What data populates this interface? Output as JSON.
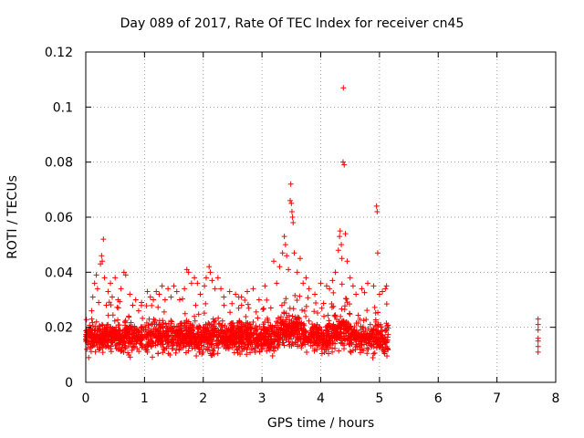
{
  "chart_data": {
    "type": "scatter",
    "title": "Day 089 of 2017, Rate Of TEC Index for receiver cn45",
    "xlabel": "GPS time / hours",
    "ylabel": "ROTI / TECUs",
    "xlim": [
      0,
      8
    ],
    "ylim": [
      0,
      0.12
    ],
    "xticks": [
      "0",
      "1",
      "2",
      "3",
      "4",
      "5",
      "6",
      "7",
      "8"
    ],
    "yticks": [
      "0",
      "0.02",
      "0.04",
      "0.06",
      "0.08",
      "0.1",
      "0.12"
    ],
    "grid": true,
    "marker": "+",
    "color": "#ff0000",
    "series": [
      {
        "name": "ROTI",
        "points": [
          [
            0.02,
            0.012
          ],
          [
            0.05,
            0.009
          ],
          [
            0.08,
            0.019
          ],
          [
            0.1,
            0.026
          ],
          [
            0.12,
            0.031
          ],
          [
            0.15,
            0.036
          ],
          [
            0.18,
            0.039
          ],
          [
            0.2,
            0.034
          ],
          [
            0.22,
            0.029
          ],
          [
            0.25,
            0.043
          ],
          [
            0.27,
            0.046
          ],
          [
            0.28,
            0.044
          ],
          [
            0.3,
            0.052
          ],
          [
            0.32,
            0.038
          ],
          [
            0.35,
            0.028
          ],
          [
            0.38,
            0.033
          ],
          [
            0.42,
            0.036
          ],
          [
            0.45,
            0.031
          ],
          [
            0.5,
            0.038
          ],
          [
            0.55,
            0.03
          ],
          [
            0.6,
            0.034
          ],
          [
            0.65,
            0.04
          ],
          [
            0.68,
            0.039
          ],
          [
            0.75,
            0.032
          ],
          [
            0.8,
            0.028
          ],
          [
            0.85,
            0.03
          ],
          [
            0.9,
            0.026
          ],
          [
            0.95,
            0.029
          ],
          [
            1.05,
            0.033
          ],
          [
            1.1,
            0.031
          ],
          [
            1.15,
            0.03
          ],
          [
            1.2,
            0.033
          ],
          [
            1.25,
            0.032
          ],
          [
            1.3,
            0.035
          ],
          [
            1.35,
            0.03
          ],
          [
            1.4,
            0.034
          ],
          [
            1.45,
            0.031
          ],
          [
            1.5,
            0.035
          ],
          [
            1.55,
            0.033
          ],
          [
            1.6,
            0.03
          ],
          [
            1.68,
            0.034
          ],
          [
            1.72,
            0.041
          ],
          [
            1.75,
            0.04
          ],
          [
            1.8,
            0.036
          ],
          [
            1.85,
            0.038
          ],
          [
            1.9,
            0.036
          ],
          [
            1.95,
            0.032
          ],
          [
            2.02,
            0.035
          ],
          [
            2.05,
            0.038
          ],
          [
            2.1,
            0.042
          ],
          [
            2.12,
            0.04
          ],
          [
            2.15,
            0.037
          ],
          [
            2.2,
            0.034
          ],
          [
            2.25,
            0.038
          ],
          [
            2.3,
            0.034
          ],
          [
            2.35,
            0.031
          ],
          [
            2.45,
            0.033
          ],
          [
            2.55,
            0.032
          ],
          [
            2.65,
            0.031
          ],
          [
            2.75,
            0.033
          ],
          [
            2.85,
            0.034
          ],
          [
            2.95,
            0.03
          ],
          [
            3.05,
            0.035
          ],
          [
            3.15,
            0.027
          ],
          [
            3.2,
            0.044
          ],
          [
            3.25,
            0.036
          ],
          [
            3.3,
            0.042
          ],
          [
            3.35,
            0.047
          ],
          [
            3.38,
            0.053
          ],
          [
            3.4,
            0.05
          ],
          [
            3.42,
            0.046
          ],
          [
            3.45,
            0.041
          ],
          [
            3.48,
            0.066
          ],
          [
            3.49,
            0.072
          ],
          [
            3.5,
            0.065
          ],
          [
            3.51,
            0.062
          ],
          [
            3.52,
            0.06
          ],
          [
            3.53,
            0.058
          ],
          [
            3.55,
            0.047
          ],
          [
            3.6,
            0.04
          ],
          [
            3.65,
            0.045
          ],
          [
            3.7,
            0.036
          ],
          [
            3.75,
            0.038
          ],
          [
            3.8,
            0.034
          ],
          [
            3.9,
            0.032
          ],
          [
            4.0,
            0.036
          ],
          [
            4.1,
            0.035
          ],
          [
            4.15,
            0.034
          ],
          [
            4.2,
            0.037
          ],
          [
            4.25,
            0.04
          ],
          [
            4.3,
            0.048
          ],
          [
            4.32,
            0.053
          ],
          [
            4.33,
            0.055
          ],
          [
            4.35,
            0.05
          ],
          [
            4.36,
            0.045
          ],
          [
            4.38,
            0.08
          ],
          [
            4.385,
            0.107
          ],
          [
            4.4,
            0.079
          ],
          [
            4.42,
            0.054
          ],
          [
            4.45,
            0.044
          ],
          [
            4.5,
            0.038
          ],
          [
            4.55,
            0.035
          ],
          [
            4.6,
            0.032
          ],
          [
            4.7,
            0.034
          ],
          [
            4.8,
            0.036
          ],
          [
            4.9,
            0.035
          ],
          [
            4.95,
            0.064
          ],
          [
            4.96,
            0.062
          ],
          [
            4.97,
            0.047
          ],
          [
            5.0,
            0.032
          ],
          [
            5.05,
            0.033
          ],
          [
            5.1,
            0.034
          ],
          [
            5.12,
            0.035
          ],
          [
            7.7,
            0.023
          ],
          [
            7.7,
            0.021
          ],
          [
            7.7,
            0.019
          ],
          [
            7.7,
            0.016
          ],
          [
            7.7,
            0.015
          ],
          [
            7.7,
            0.013
          ],
          [
            7.7,
            0.011
          ]
        ]
      }
    ]
  }
}
